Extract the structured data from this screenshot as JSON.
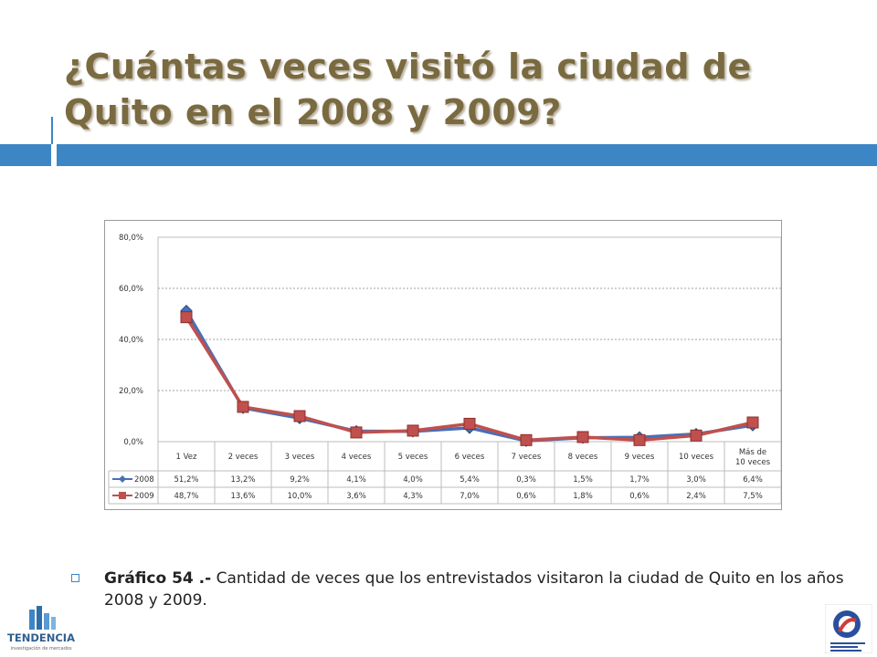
{
  "slide": {
    "title": "¿Cuántas veces visitó la ciudad de Quito en el 2008 y 2009?",
    "caption_label": "Gráfico 54 .-",
    "caption_text": " Cantidad de veces que los entrevistados visitaron la ciudad de Quito en los años 2008 y 2009.",
    "accent_color": "#3d86c6",
    "title_color": "#7a6a40"
  },
  "logos": {
    "left_text": "TENDENCIA",
    "left_subtext": "investigación de mercados",
    "right_text": "Empresa Metropolitana Quito Turismo"
  },
  "chart_data": {
    "type": "line",
    "categories": [
      "1 Vez",
      "2 veces",
      "3 veces",
      "4 veces",
      "5 veces",
      "6 veces",
      "7 veces",
      "8 veces",
      "9 veces",
      "10 veces",
      "Más de 10 veces"
    ],
    "series": [
      {
        "name": "2008",
        "color": "#4a6fb5",
        "marker": "diamond",
        "values": [
          51.2,
          13.2,
          9.2,
          4.1,
          4.0,
          5.4,
          0.3,
          1.5,
          1.7,
          3.0,
          6.4
        ],
        "labels": [
          "51,2%",
          "13,2%",
          "9,2%",
          "4,1%",
          "4,0%",
          "5,4%",
          "0,3%",
          "1,5%",
          "1,7%",
          "3,0%",
          "6,4%"
        ]
      },
      {
        "name": "2009",
        "color": "#c0504d",
        "marker": "square",
        "values": [
          48.7,
          13.6,
          10.0,
          3.6,
          4.3,
          7.0,
          0.6,
          1.8,
          0.6,
          2.4,
          7.5
        ],
        "labels": [
          "48,7%",
          "13,6%",
          "10,0%",
          "3,6%",
          "4,3%",
          "7,0%",
          "0,6%",
          "1,8%",
          "0,6%",
          "2,4%",
          "7,5%"
        ]
      }
    ],
    "yticks": [
      "80,0%",
      "60,0%",
      "40,0%",
      "20,0%",
      "0,0%"
    ],
    "ylim": [
      0,
      80
    ],
    "grid": true,
    "legend": "data table"
  }
}
